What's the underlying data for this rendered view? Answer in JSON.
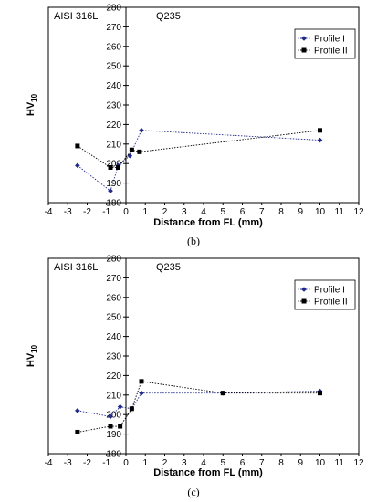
{
  "chart_data": [
    {
      "type": "line",
      "panel_label": "(b)",
      "xlabel": "Distance from FL (mm)",
      "ylabel_base": "HV",
      "ylabel_sub": "10",
      "xlim": [
        -4,
        12
      ],
      "ylim": [
        180,
        280
      ],
      "xticks": [
        -4,
        -3,
        -2,
        -1,
        0,
        1,
        2,
        3,
        4,
        5,
        6,
        7,
        8,
        9,
        10,
        11,
        12
      ],
      "yticks": [
        180,
        190,
        200,
        210,
        220,
        230,
        240,
        250,
        260,
        270,
        280
      ],
      "annotations": [
        "AISI 316L",
        "Q235"
      ],
      "legend_position": "top-right",
      "series": [
        {
          "name": "Profile I",
          "marker": "diamond",
          "color": "#1f2a8a",
          "x": [
            -2.5,
            -0.8,
            -0.4,
            0.2,
            0.8,
            10
          ],
          "y": [
            199,
            186,
            199,
            204,
            217,
            212
          ]
        },
        {
          "name": "Profile II",
          "marker": "square",
          "color": "#000000",
          "x": [
            -2.5,
            -0.8,
            -0.4,
            0.3,
            0.7,
            10
          ],
          "y": [
            209,
            198,
            198,
            207,
            206,
            217
          ]
        }
      ]
    },
    {
      "type": "line",
      "panel_label": "(c)",
      "xlabel": "Distance from FL (mm)",
      "ylabel_base": "HV",
      "ylabel_sub": "10",
      "xlim": [
        -4,
        12
      ],
      "ylim": [
        180,
        280
      ],
      "xticks": [
        -4,
        -3,
        -2,
        -1,
        0,
        1,
        2,
        3,
        4,
        5,
        6,
        7,
        8,
        9,
        10,
        11,
        12
      ],
      "yticks": [
        180,
        190,
        200,
        210,
        220,
        230,
        240,
        250,
        260,
        270,
        280
      ],
      "annotations": [
        "AISI 316L",
        "Q235"
      ],
      "legend_position": "top-right",
      "series": [
        {
          "name": "Profile I",
          "marker": "diamond",
          "color": "#1f2a8a",
          "x": [
            -2.5,
            -0.8,
            -0.3,
            0.3,
            0.8,
            5,
            10
          ],
          "y": [
            202,
            199,
            204,
            203,
            211,
            211,
            212
          ]
        },
        {
          "name": "Profile II",
          "marker": "square",
          "color": "#000000",
          "x": [
            -2.5,
            -0.8,
            -0.3,
            0.3,
            0.8,
            5,
            10
          ],
          "y": [
            191,
            194,
            194,
            203,
            217,
            211,
            211
          ]
        }
      ]
    }
  ]
}
